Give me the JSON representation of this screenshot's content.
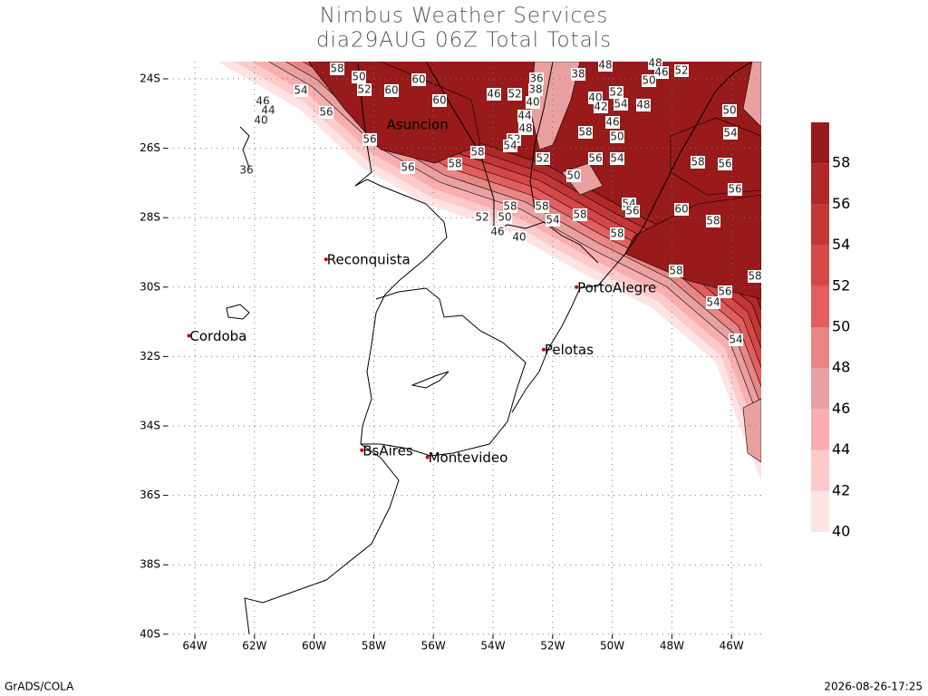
{
  "header": {
    "title": "Nimbus Weather Services",
    "subtitle": "dia29AUG 06Z Total Totals"
  },
  "map": {
    "xticks": [
      {
        "value": -64,
        "label": "64W"
      },
      {
        "value": -62,
        "label": "62W"
      },
      {
        "value": -60,
        "label": "60W"
      },
      {
        "value": -58,
        "label": "58W"
      },
      {
        "value": -56,
        "label": "56W"
      },
      {
        "value": -54,
        "label": "54W"
      },
      {
        "value": -52,
        "label": "52W"
      },
      {
        "value": -50,
        "label": "50W"
      },
      {
        "value": -48,
        "label": "48W"
      },
      {
        "value": -46,
        "label": "46W"
      }
    ],
    "yticks": [
      {
        "value": -24,
        "label": "24S"
      },
      {
        "value": -26,
        "label": "26S"
      },
      {
        "value": -28,
        "label": "28S"
      },
      {
        "value": -30,
        "label": "30S"
      },
      {
        "value": -32,
        "label": "32S"
      },
      {
        "value": -34,
        "label": "34S"
      },
      {
        "value": -36,
        "label": "36S"
      },
      {
        "value": -38,
        "label": "38S"
      },
      {
        "value": -40,
        "label": "40S"
      }
    ],
    "cities": [
      "Asuncion",
      "Reconquista",
      "Cordoba",
      "PortoAlegre",
      "Pelotas",
      "BsAires",
      "Montevideo"
    ],
    "contour_labels": [
      58,
      50,
      52,
      60,
      60,
      60,
      54,
      46,
      44,
      40,
      56,
      56,
      56,
      58,
      58,
      46,
      52,
      36,
      38,
      40,
      44,
      48,
      52,
      54,
      52,
      38,
      48,
      48,
      46,
      52,
      50,
      52,
      54,
      48,
      40,
      42,
      46,
      58,
      50,
      50,
      56,
      54,
      58,
      56,
      56,
      50,
      54,
      60,
      58,
      54,
      56,
      58,
      54,
      58,
      58,
      50,
      52,
      46,
      40,
      58,
      58,
      56,
      54,
      58,
      54,
      36
    ]
  },
  "colorbar": {
    "levels": [
      40,
      42,
      44,
      46,
      48,
      50,
      52,
      54,
      56,
      58
    ],
    "colors": [
      "#fde3e3",
      "#fccaca",
      "#f8aeae",
      "#e9a0a0",
      "#e88585",
      "#e35e5e",
      "#d44848",
      "#c33636",
      "#b02828",
      "#981a1a"
    ]
  },
  "footer": {
    "left": "GrADS/COLA",
    "right": "2026-08-26-17:25"
  }
}
